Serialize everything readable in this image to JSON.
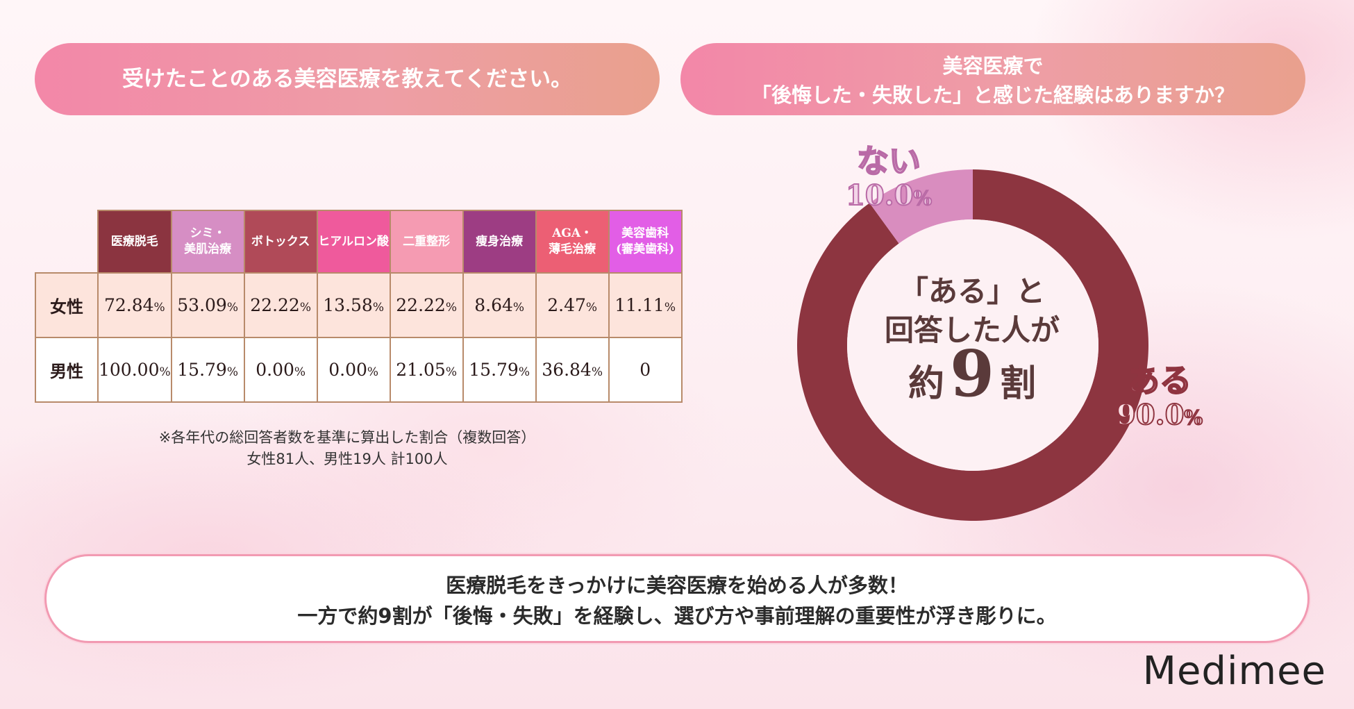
{
  "left_title": "受けたことのある美容医療を教えてください。",
  "right_title": {
    "line1": "美容医療で",
    "line2": "「後悔した・失敗した」と感じた経験はありますか？"
  },
  "table": {
    "columns": [
      {
        "label1": "医療脱毛",
        "label2": "",
        "color": "#8b3440"
      },
      {
        "label1": "シミ・",
        "label2": "美肌治療",
        "color": "#d68ec4"
      },
      {
        "label1": "ボトックス",
        "label2": "",
        "color": "#b04a58"
      },
      {
        "label1": "ヒアルロン酸",
        "label2": "",
        "color": "#ef5a9c"
      },
      {
        "label1": "二重整形",
        "label2": "",
        "color": "#f59bb2"
      },
      {
        "label1": "痩身治療",
        "label2": "",
        "color": "#9d3d83"
      },
      {
        "label1": "AGA・",
        "label2": "薄毛治療",
        "color": "#ec5f74"
      },
      {
        "label1": "美容歯科",
        "label2": "(審美歯科)",
        "color": "#e25ee6"
      }
    ],
    "rows": [
      {
        "label": "女性",
        "cells": [
          {
            "n": "72.84",
            "u": "%"
          },
          {
            "n": "53.09",
            "u": "%"
          },
          {
            "n": "22.22",
            "u": "%"
          },
          {
            "n": "13.58",
            "u": "%"
          },
          {
            "n": "22.22",
            "u": "%"
          },
          {
            "n": "8.64",
            "u": "%"
          },
          {
            "n": "2.47",
            "u": "%"
          },
          {
            "n": "11.11",
            "u": "%"
          }
        ]
      },
      {
        "label": "男性",
        "cells": [
          {
            "n": "100.00",
            "u": "%"
          },
          {
            "n": "15.79",
            "u": "%"
          },
          {
            "n": "0.00",
            "u": "%"
          },
          {
            "n": "0.00",
            "u": "%"
          },
          {
            "n": "21.05",
            "u": "%"
          },
          {
            "n": "15.79",
            "u": "%"
          },
          {
            "n": "36.84",
            "u": "%"
          },
          {
            "n": "0",
            "u": ""
          }
        ]
      }
    ]
  },
  "notes": {
    "line1": "※各年代の総回答者数を基準に算出した割合（複数回答）",
    "line2": "女性81人、男性19人 計100人"
  },
  "chart_data": {
    "type": "pie",
    "donut": true,
    "categories": [
      "ある",
      "ない"
    ],
    "values": [
      90.0,
      10.0
    ],
    "value_labels": [
      "90.0",
      "10.0"
    ],
    "unit": "%",
    "colors": [
      "#8d3540",
      "#d98dbf"
    ],
    "center_text": {
      "line1": "「ある」と",
      "line2": "回答した人が",
      "prefix": "約",
      "number": "9",
      "suffix": "割"
    }
  },
  "summary": {
    "line1": "医療脱毛をきっかけに美容医療を始める人が多数！",
    "line2": "一方で約9割が「後悔・失敗」を経験し、選び方や事前理解の重要性が浮き彫りに。"
  },
  "logo": "Medimee"
}
